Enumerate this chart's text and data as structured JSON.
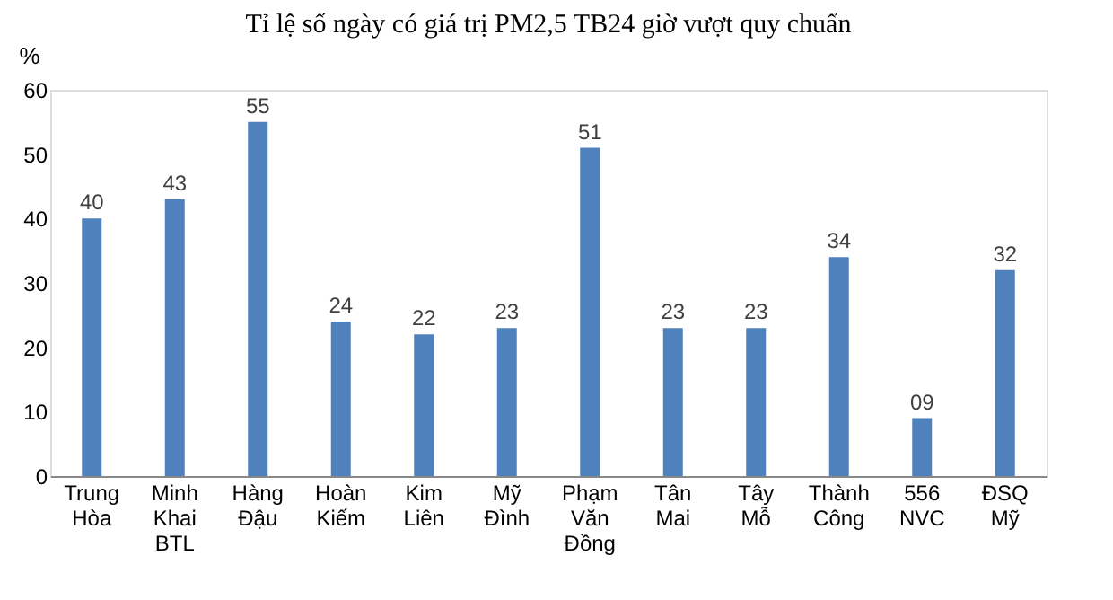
{
  "chart_data": {
    "type": "bar",
    "title": "Tỉ lệ số ngày có giá trị PM2,5 TB24 giờ vượt quy chuẩn",
    "ylabel": "%",
    "categories": [
      "Trung Hòa",
      "Minh Khai BTL",
      "Hàng Đậu",
      "Hoàn Kiếm",
      "Kim Liên",
      "Mỹ Đình",
      "Phạm Văn Đồng",
      "Tân Mai",
      "Tây Mỗ",
      "Thành Công",
      "556 NVC",
      "ĐSQ Mỹ"
    ],
    "values": [
      40,
      43,
      55,
      24,
      22,
      23,
      51,
      23,
      23,
      34,
      9,
      32
    ],
    "value_labels": [
      "40",
      "43",
      "55",
      "24",
      "22",
      "23",
      "51",
      "23",
      "23",
      "34",
      "09",
      "32"
    ],
    "color": "#4f81bd",
    "ylim": [
      0,
      60
    ],
    "yticks": [
      0,
      10,
      20,
      30,
      40,
      50,
      60
    ],
    "grid": false
  }
}
